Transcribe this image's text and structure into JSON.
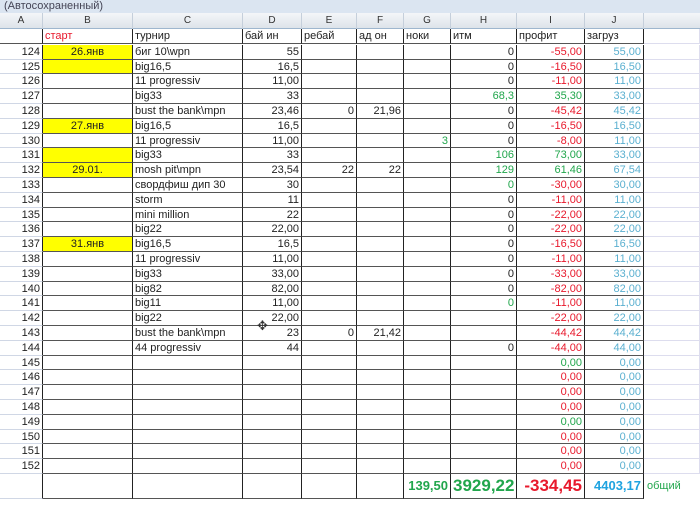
{
  "window": {
    "title": "(Автосохраненный)"
  },
  "columns": [
    "A",
    "B",
    "C",
    "D",
    "E",
    "F",
    "G",
    "H",
    "I",
    "J"
  ],
  "header_row": {
    "b": "старт",
    "c": "турнир",
    "d": "бай ин",
    "e": "ребай",
    "f": "ад он",
    "g": "ноки",
    "h": "итм",
    "i": "профит",
    "j": "загруз"
  },
  "rows": [
    {
      "n": "124",
      "b": "26.янв",
      "c": "биг 10\\wpn",
      "d": "55",
      "e": "",
      "f": "",
      "g": "",
      "h": "0",
      "i": "-55,00",
      "j": "55,00",
      "yel": true
    },
    {
      "n": "125",
      "b": "",
      "c": "big16,5",
      "d": "16,5",
      "e": "",
      "f": "",
      "g": "",
      "h": "0",
      "i": "-16,50",
      "j": "16,50",
      "yel": true
    },
    {
      "n": "126",
      "b": "",
      "c": "11 progressiv",
      "d": "11,00",
      "e": "",
      "f": "",
      "g": "",
      "h": "0",
      "i": "-11,00",
      "j": "11,00"
    },
    {
      "n": "127",
      "b": "",
      "c": "big33",
      "d": "33",
      "e": "",
      "f": "",
      "g": "",
      "h": "68,3",
      "i": "35,30",
      "j": "33,00",
      "hg": true
    },
    {
      "n": "128",
      "b": "",
      "c": "bust the bank\\mpn",
      "d": "23,46",
      "e": "0",
      "f": "21,96",
      "g": "",
      "h": "0",
      "i": "-45,42",
      "j": "45,42"
    },
    {
      "n": "129",
      "b": "27.янв",
      "c": "big16,5",
      "d": "16,5",
      "e": "",
      "f": "",
      "g": "",
      "h": "0",
      "i": "-16,50",
      "j": "16,50",
      "yel": true
    },
    {
      "n": "130",
      "b": "",
      "c": "11 progressiv",
      "d": "11,00",
      "e": "",
      "f": "",
      "g": "3",
      "h": "0",
      "i": "-8,00",
      "j": "11,00"
    },
    {
      "n": "131",
      "b": "",
      "c": "big33",
      "d": "33",
      "e": "",
      "f": "",
      "g": "",
      "h": "106",
      "i": "73,00",
      "j": "33,00",
      "yel": true,
      "hg": true
    },
    {
      "n": "132",
      "b": "29.01.",
      "c": "mosh pit\\mpn",
      "d": "23,54",
      "e": "22",
      "f": "22",
      "g": "",
      "h": "129",
      "i": "61,46",
      "j": "67,54",
      "yel": true,
      "hg": true
    },
    {
      "n": "133",
      "b": "",
      "c": "свордфиш дип 30",
      "d": "30",
      "e": "",
      "f": "",
      "g": "",
      "h": "0",
      "i": "-30,00",
      "j": "30,00",
      "hg": true
    },
    {
      "n": "134",
      "b": "",
      "c": "storm",
      "d": "11",
      "e": "",
      "f": "",
      "g": "",
      "h": "0",
      "i": "-11,00",
      "j": "11,00"
    },
    {
      "n": "135",
      "b": "",
      "c": "mini million",
      "d": "22",
      "e": "",
      "f": "",
      "g": "",
      "h": "0",
      "i": "-22,00",
      "j": "22,00"
    },
    {
      "n": "136",
      "b": "",
      "c": "big22",
      "d": "22,00",
      "e": "",
      "f": "",
      "g": "",
      "h": "0",
      "i": "-22,00",
      "j": "22,00"
    },
    {
      "n": "137",
      "b": "31.янв",
      "c": "big16,5",
      "d": "16,5",
      "e": "",
      "f": "",
      "g": "",
      "h": "0",
      "i": "-16,50",
      "j": "16,50",
      "yel": true
    },
    {
      "n": "138",
      "b": "",
      "c": "11 progressiv",
      "d": "11,00",
      "e": "",
      "f": "",
      "g": "",
      "h": "0",
      "i": "-11,00",
      "j": "11,00"
    },
    {
      "n": "139",
      "b": "",
      "c": "big33",
      "d": "33,00",
      "e": "",
      "f": "",
      "g": "",
      "h": "0",
      "i": "-33,00",
      "j": "33,00"
    },
    {
      "n": "140",
      "b": "",
      "c": "big82",
      "d": "82,00",
      "e": "",
      "f": "",
      "g": "",
      "h": "0",
      "i": "-82,00",
      "j": "82,00"
    },
    {
      "n": "141",
      "b": "",
      "c": "big11",
      "d": "11,00",
      "e": "",
      "f": "",
      "g": "",
      "h": "0",
      "i": "-11,00",
      "j": "11,00",
      "hg": true
    },
    {
      "n": "142",
      "b": "",
      "c": "big22",
      "d": "22,00",
      "e": "",
      "f": "",
      "g": "",
      "h": "",
      "i": "-22,00",
      "j": "22,00"
    },
    {
      "n": "143",
      "b": "",
      "c": "bust the bank\\mpn",
      "d": "23",
      "e": "0",
      "f": "21,42",
      "g": "",
      "h": "",
      "i": "-44,42",
      "j": "44,42"
    },
    {
      "n": "144",
      "b": "",
      "c": "44 progressiv",
      "d": "44",
      "e": "",
      "f": "",
      "g": "",
      "h": "0",
      "i": "-44,00",
      "j": "44,00"
    },
    {
      "n": "145",
      "b": "",
      "c": "",
      "d": "",
      "e": "",
      "f": "",
      "g": "",
      "h": "",
      "i": "0,00",
      "j": "0,00",
      "ig": true
    },
    {
      "n": "146",
      "b": "",
      "c": "",
      "d": "",
      "e": "",
      "f": "",
      "g": "",
      "h": "",
      "i": "0,00",
      "j": "0,00"
    },
    {
      "n": "147",
      "b": "",
      "c": "",
      "d": "",
      "e": "",
      "f": "",
      "g": "",
      "h": "",
      "i": "0,00",
      "j": "0,00"
    },
    {
      "n": "148",
      "b": "",
      "c": "",
      "d": "",
      "e": "",
      "f": "",
      "g": "",
      "h": "",
      "i": "0,00",
      "j": "0,00"
    },
    {
      "n": "149",
      "b": "",
      "c": "",
      "d": "",
      "e": "",
      "f": "",
      "g": "",
      "h": "",
      "i": "0,00",
      "j": "0,00",
      "ig": true
    },
    {
      "n": "150",
      "b": "",
      "c": "",
      "d": "",
      "e": "",
      "f": "",
      "g": "",
      "h": "",
      "i": "0,00",
      "j": "0,00"
    },
    {
      "n": "151",
      "b": "",
      "c": "",
      "d": "",
      "e": "",
      "f": "",
      "g": "",
      "h": "",
      "i": "0,00",
      "j": "0,00"
    },
    {
      "n": "152",
      "b": "",
      "c": "",
      "d": "",
      "e": "",
      "f": "",
      "g": "",
      "h": "",
      "i": "0,00",
      "j": "0,00"
    }
  ],
  "totals": {
    "g": "139,50",
    "h": "3929,22",
    "i": "-334,45",
    "j": "4403,17",
    "label": "общий"
  },
  "colors": {
    "negative": "#e8192c",
    "positive": "#21a64c",
    "load": "#5bb0d0",
    "highlight": "#ffff00"
  }
}
